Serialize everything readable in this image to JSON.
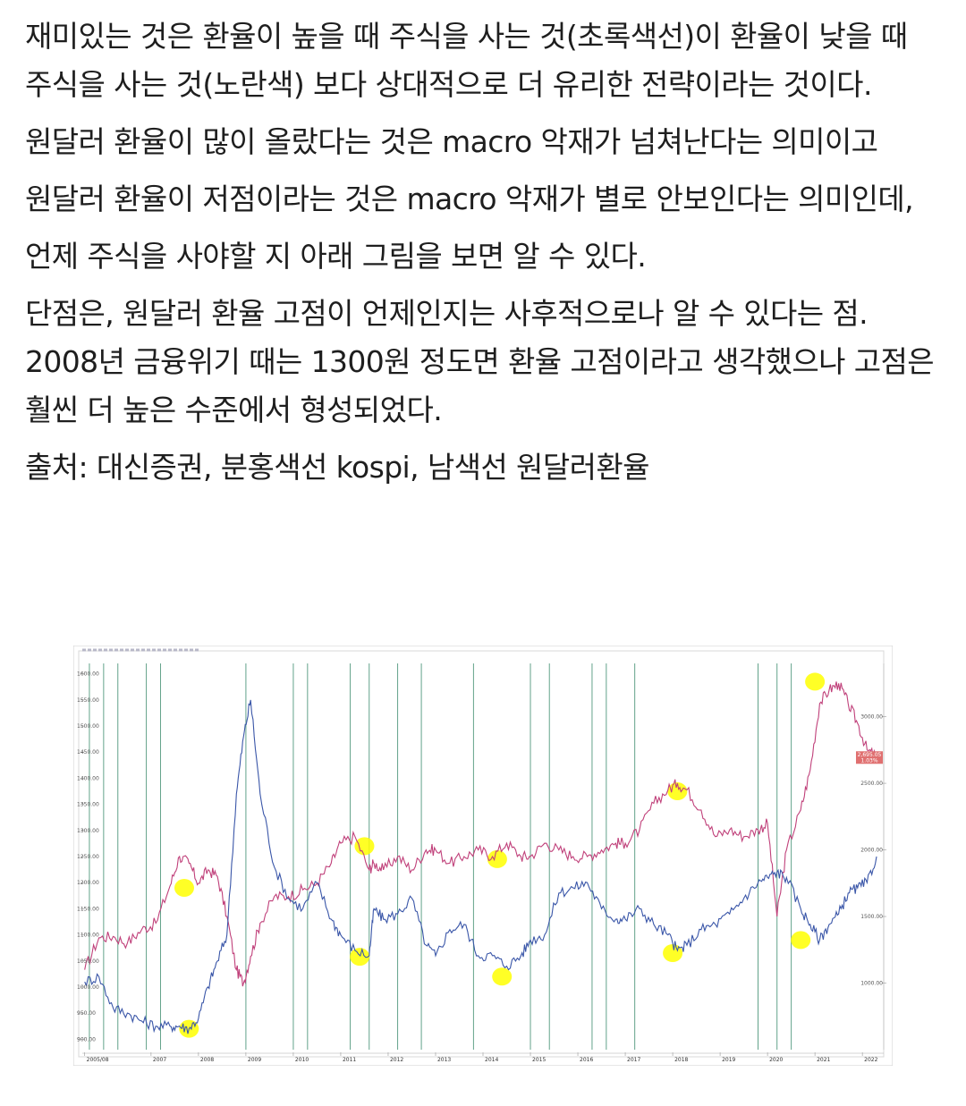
{
  "paragraphs": [
    "재미있는 것은 환율이 높을 때 주식을 사는 것(초록색선)이 환율이 낮을 때 주식을 사는 것(노란색) 보다 상대적으로 더 유리한 전략이라는 것이다.",
    "원달러 환율이 많이 올랐다는 것은 macro 악재가 넘쳐난다는 의미이고",
    "원달러 환율이 저점이라는 것은 macro 악재가 별로 안보인다는 의미인데,",
    "언제 주식을 사야할 지 아래 그림을 보면 알 수 있다.",
    "단점은, 원달러 환율 고점이 언제인지는 사후적으로나 알 수 있다는 점. 2008년 금융위기 때는 1300원 정도면 환율 고점이라고 생각했으나 고점은 훨씬 더 높은 수준에서 형성되었다.",
    "출처: 대신증권, 분홍색선 kospi, 남색선 원달러환율"
  ],
  "chart_data": {
    "type": "line",
    "left_axis": {
      "ticks": [
        "1600.00",
        "1550.00",
        "1500.00",
        "1450.00",
        "1400.00",
        "1350.00",
        "1300.00",
        "1250.00",
        "1200.00",
        "1150.00",
        "1100.00",
        "1050.00",
        "1000.00",
        "950.00",
        "900.00"
      ],
      "ylim": [
        880,
        1620
      ]
    },
    "right_axis": {
      "ticks": [
        "3000.00",
        "2500.00",
        "2000.00",
        "1500.00",
        "1000.00"
      ],
      "ylim": [
        500,
        3400
      ],
      "last_value_label": "2,695.05",
      "last_change_label": "1.03%"
    },
    "x_ticks": [
      "2005/08",
      "2007",
      "2008",
      "2009",
      "2010",
      "2011",
      "2012",
      "2013",
      "2014",
      "2015",
      "2016",
      "2017",
      "2018",
      "2019",
      "2020",
      "2021",
      "2022"
    ],
    "series": [
      {
        "color": "#c0407a",
        "axis": "right",
        "x": [
          2005.6,
          2005.9,
          2006.2,
          2006.5,
          2006.8,
          2007.1,
          2007.4,
          2007.6,
          2007.8,
          2008.0,
          2008.2,
          2008.4,
          2008.6,
          2008.8,
          2008.95,
          2009.1,
          2009.3,
          2009.6,
          2009.9,
          2010.2,
          2010.5,
          2010.8,
          2011.0,
          2011.3,
          2011.6,
          2011.7,
          2011.9,
          2012.2,
          2012.5,
          2012.8,
          2013.0,
          2013.3,
          2013.6,
          2013.9,
          2014.2,
          2014.5,
          2014.8,
          2015.0,
          2015.3,
          2015.6,
          2015.9,
          2016.2,
          2016.5,
          2016.8,
          2017.0,
          2017.3,
          2017.6,
          2017.9,
          2018.1,
          2018.3,
          2018.6,
          2018.9,
          2019.2,
          2019.5,
          2019.8,
          2020.0,
          2020.2,
          2020.4,
          2020.7,
          2020.9,
          2021.1,
          2021.3,
          2021.5,
          2021.7,
          2021.9,
          2022.1,
          2022.3
        ],
        "y": [
          1100,
          1340,
          1350,
          1300,
          1400,
          1450,
          1730,
          1950,
          1900,
          1750,
          1850,
          1800,
          1500,
          1100,
          1000,
          1200,
          1450,
          1650,
          1650,
          1700,
          1750,
          1900,
          2050,
          2100,
          1850,
          1900,
          1850,
          1950,
          1850,
          2000,
          2000,
          1900,
          1950,
          2000,
          1950,
          2050,
          1950,
          1950,
          2050,
          2000,
          1950,
          1950,
          2000,
          2050,
          2050,
          2150,
          2350,
          2450,
          2500,
          2450,
          2300,
          2100,
          2150,
          2100,
          2150,
          2200,
          1500,
          2000,
          2300,
          2600,
          3100,
          3200,
          3250,
          3100,
          2950,
          2750,
          2700
        ]
      },
      {
        "color": "#3a56a8",
        "axis": "left",
        "x": [
          2005.6,
          2005.9,
          2006.2,
          2006.5,
          2006.8,
          2007.1,
          2007.4,
          2007.6,
          2007.8,
          2008.0,
          2008.2,
          2008.4,
          2008.6,
          2008.8,
          2008.95,
          2009.1,
          2009.3,
          2009.6,
          2009.9,
          2010.2,
          2010.5,
          2010.8,
          2011.0,
          2011.3,
          2011.6,
          2011.7,
          2011.9,
          2012.2,
          2012.5,
          2012.8,
          2013.0,
          2013.3,
          2013.6,
          2013.9,
          2014.2,
          2014.5,
          2014.8,
          2015.0,
          2015.3,
          2015.6,
          2015.9,
          2016.2,
          2016.5,
          2016.8,
          2017.0,
          2017.3,
          2017.6,
          2017.9,
          2018.1,
          2018.3,
          2018.6,
          2018.9,
          2019.2,
          2019.5,
          2019.8,
          2020.0,
          2020.2,
          2020.4,
          2020.7,
          2020.9,
          2021.1,
          2021.3,
          2021.5,
          2021.7,
          2021.9,
          2022.1,
          2022.3
        ],
        "y": [
          1010,
          1020,
          960,
          950,
          935,
          925,
          925,
          925,
          920,
          940,
          1000,
          1050,
          1100,
          1370,
          1480,
          1550,
          1370,
          1230,
          1170,
          1150,
          1200,
          1130,
          1100,
          1070,
          1060,
          1150,
          1130,
          1140,
          1170,
          1080,
          1060,
          1110,
          1120,
          1060,
          1060,
          1040,
          1060,
          1090,
          1100,
          1180,
          1190,
          1200,
          1150,
          1130,
          1130,
          1150,
          1120,
          1100,
          1070,
          1080,
          1110,
          1120,
          1140,
          1170,
          1200,
          1210,
          1220,
          1210,
          1150,
          1120,
          1090,
          1120,
          1140,
          1180,
          1190,
          1200,
          1250
        ]
      }
    ],
    "highlights": [
      {
        "color": "#ffff00",
        "x": 2007.7,
        "y_left": 1190
      },
      {
        "color": "#ffff00",
        "x": 2007.8,
        "y_left": 920
      },
      {
        "color": "#ffff00",
        "x": 2011.5,
        "y_left": 1270
      },
      {
        "color": "#ffff00",
        "x": 2011.4,
        "y_left": 1058
      },
      {
        "color": "#ffff00",
        "x": 2014.3,
        "y_left": 1245
      },
      {
        "color": "#ffff00",
        "x": 2014.4,
        "y_left": 1020
      },
      {
        "color": "#ffff00",
        "x": 2018.1,
        "y_left": 1375
      },
      {
        "color": "#ffff00",
        "x": 2018.0,
        "y_left": 1065
      },
      {
        "color": "#ffff00",
        "x": 2021.0,
        "y_left": 1585
      },
      {
        "color": "#ffff00",
        "x": 2020.7,
        "y_left": 1090
      }
    ],
    "vertical_markers": {
      "color": "#3c8c6e",
      "x": [
        2005.7,
        2006.0,
        2006.3,
        2006.9,
        2007.2,
        2009.0,
        2010.0,
        2010.3,
        2011.2,
        2011.6,
        2012.2,
        2012.7,
        2013.8,
        2015.0,
        2015.4,
        2016.3,
        2016.6,
        2017.2,
        2019.8,
        2020.2,
        2020.5
      ]
    },
    "grid": false
  }
}
